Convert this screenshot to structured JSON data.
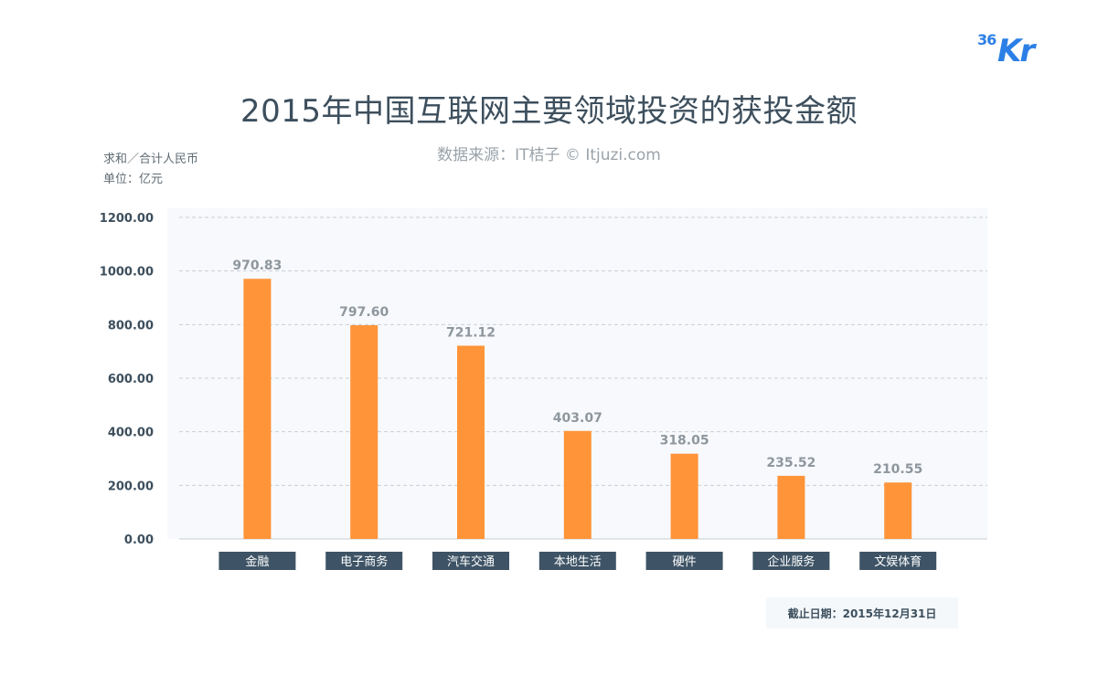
{
  "logo": {
    "sup": "36",
    "main": "Kr"
  },
  "title": "2015年中国互联网主要领域投资的获投金额",
  "source": "数据来源：IT桔子 © Itjuzi.com",
  "unit_line1": "求和／合计人民币",
  "unit_line2": "单位：亿元",
  "cutoff": "截止日期：2015年12月31日",
  "colors": {
    "bar": "#ff9438",
    "category_bg": "#3e5466",
    "plot_bg": "#f7f9fc",
    "grid": "#c9cfd5"
  },
  "chart_data": {
    "type": "bar",
    "title": "2015年中国互联网主要领域投资的获投金额",
    "categories": [
      "金融",
      "电子商务",
      "汽车交通",
      "本地生活",
      "硬件",
      "企业服务",
      "文娱体育"
    ],
    "values": [
      970.83,
      797.6,
      721.12,
      403.07,
      318.05,
      235.52,
      210.55
    ],
    "value_labels": [
      "970.83",
      "797.60",
      "721.12",
      "403.07",
      "318.05",
      "235.52",
      "210.55"
    ],
    "yticks": [
      "0.00",
      "200.00",
      "400.00",
      "600.00",
      "800.00",
      "1000.00",
      "1200.00"
    ],
    "ylim": [
      0,
      1200
    ],
    "grid": true
  }
}
